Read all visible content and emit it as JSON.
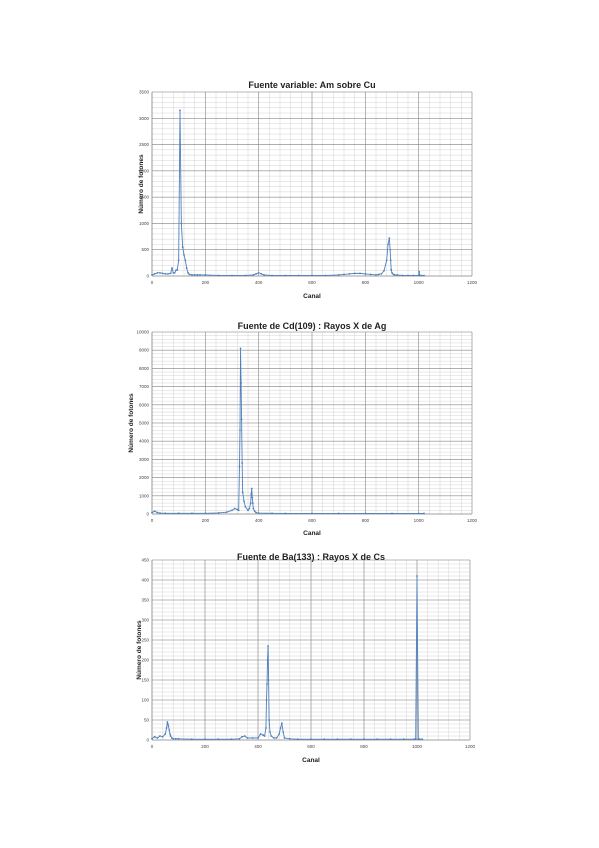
{
  "chart_data": [
    {
      "type": "scatter",
      "title": "Fuente variable: Am sobre Cu",
      "xlabel": "Canal",
      "ylabel": "Número de fotones",
      "xlim": [
        0,
        1200
      ],
      "ylim": [
        0,
        3500
      ],
      "xticks": [
        0,
        200,
        400,
        600,
        800,
        1000,
        1200
      ],
      "yticks": [
        0,
        500,
        1000,
        1500,
        2000,
        2500,
        3000,
        3500
      ],
      "xtick_labels": [
        "0",
        "200",
        "400",
        "600",
        "800",
        "1000",
        "1200"
      ],
      "ytick_labels": [
        "0",
        "500",
        "1000",
        "1500",
        "2000",
        "2500",
        "3000",
        "3500"
      ],
      "grid": true,
      "series": [
        {
          "x": [
            0,
            10,
            20,
            30,
            40,
            50,
            60,
            70,
            75,
            80,
            85,
            90,
            95,
            100,
            105,
            110,
            115,
            120,
            125,
            130,
            135,
            140,
            150,
            160,
            170,
            180,
            200,
            250,
            300,
            350,
            380,
            390,
            400,
            410,
            420,
            450,
            500,
            550,
            600,
            650,
            700,
            720,
            740,
            760,
            780,
            800,
            820,
            840,
            850,
            860,
            870,
            880,
            885,
            890,
            893,
            895,
            897,
            900,
            905,
            910,
            920,
            940,
            960,
            980,
            1000,
            1002,
            1004,
            1010,
            1020
          ],
          "y": [
            20,
            40,
            60,
            60,
            50,
            40,
            40,
            50,
            150,
            60,
            60,
            110,
            120,
            300,
            3150,
            1000,
            550,
            400,
            300,
            150,
            60,
            30,
            20,
            20,
            20,
            20,
            20,
            10,
            10,
            10,
            20,
            40,
            60,
            40,
            20,
            10,
            10,
            10,
            10,
            10,
            20,
            30,
            40,
            50,
            50,
            40,
            30,
            20,
            30,
            40,
            100,
            300,
            600,
            720,
            500,
            300,
            120,
            60,
            30,
            20,
            20,
            10,
            10,
            10,
            10,
            80,
            10,
            10,
            10
          ]
        }
      ]
    },
    {
      "type": "scatter",
      "title": "Fuente de Cd(109) : Rayos X de Ag",
      "xlabel": "Canal",
      "ylabel": "Número de fotones",
      "xlim": [
        0,
        1200
      ],
      "ylim": [
        0,
        10000
      ],
      "xticks": [
        0,
        200,
        400,
        600,
        800,
        1000,
        1200
      ],
      "yticks": [
        0,
        1000,
        2000,
        3000,
        4000,
        5000,
        6000,
        7000,
        8000,
        9000,
        10000
      ],
      "xtick_labels": [
        "0",
        "200",
        "400",
        "600",
        "800",
        "1000",
        "1200"
      ],
      "ytick_labels": [
        "0",
        "1000",
        "2000",
        "3000",
        "4000",
        "5000",
        "6000",
        "7000",
        "8000",
        "9000",
        "10000"
      ],
      "grid": true,
      "series": [
        {
          "x": [
            0,
            10,
            20,
            30,
            50,
            100,
            150,
            200,
            250,
            280,
            300,
            310,
            320,
            325,
            328,
            330,
            332,
            334,
            336,
            338,
            340,
            345,
            350,
            360,
            365,
            370,
            372,
            374,
            376,
            378,
            380,
            385,
            390,
            400,
            450,
            500,
            600,
            700,
            800,
            900,
            1000,
            1020
          ],
          "y": [
            80,
            150,
            80,
            50,
            40,
            40,
            40,
            40,
            60,
            100,
            200,
            300,
            250,
            200,
            2600,
            4600,
            9100,
            7200,
            5200,
            2800,
            1200,
            700,
            400,
            200,
            300,
            600,
            1100,
            1400,
            900,
            600,
            300,
            150,
            80,
            50,
            40,
            30,
            30,
            30,
            30,
            30,
            30,
            30
          ]
        }
      ]
    },
    {
      "type": "scatter",
      "title": "Fuente de Ba(133) : Rayos X de Cs",
      "xlabel": "Canal",
      "ylabel": "Número de fotones",
      "xlim": [
        0,
        1200
      ],
      "ylim": [
        0,
        450
      ],
      "xticks": [
        0,
        200,
        400,
        600,
        800,
        1000,
        1200
      ],
      "yticks": [
        0,
        50,
        100,
        150,
        200,
        250,
        300,
        350,
        400,
        450
      ],
      "xtick_labels": [
        "0",
        "200",
        "400",
        "600",
        "800",
        "1000",
        "1200"
      ],
      "ytick_labels": [
        "0",
        "50",
        "100",
        "150",
        "200",
        "250",
        "300",
        "350",
        "400",
        "450"
      ],
      "grid": true,
      "series": [
        {
          "x": [
            0,
            10,
            20,
            30,
            40,
            50,
            55,
            58,
            60,
            62,
            65,
            68,
            70,
            75,
            80,
            90,
            100,
            150,
            200,
            250,
            300,
            330,
            340,
            350,
            360,
            380,
            400,
            410,
            420,
            425,
            430,
            432,
            434,
            436,
            438,
            440,
            442,
            445,
            450,
            460,
            470,
            480,
            485,
            490,
            495,
            500,
            520,
            550,
            600,
            650,
            700,
            750,
            800,
            850,
            900,
            950,
            990,
            995,
            1000,
            1005,
            1010,
            1020
          ],
          "y": [
            3,
            8,
            5,
            10,
            8,
            15,
            30,
            45,
            40,
            35,
            25,
            15,
            10,
            5,
            3,
            3,
            3,
            2,
            2,
            2,
            2,
            3,
            8,
            10,
            5,
            5,
            5,
            15,
            12,
            10,
            30,
            100,
            140,
            200,
            235,
            150,
            50,
            20,
            10,
            5,
            5,
            15,
            30,
            42,
            20,
            5,
            3,
            2,
            2,
            2,
            2,
            2,
            2,
            2,
            2,
            2,
            2,
            2,
            410,
            2,
            2,
            2
          ]
        }
      ]
    }
  ]
}
